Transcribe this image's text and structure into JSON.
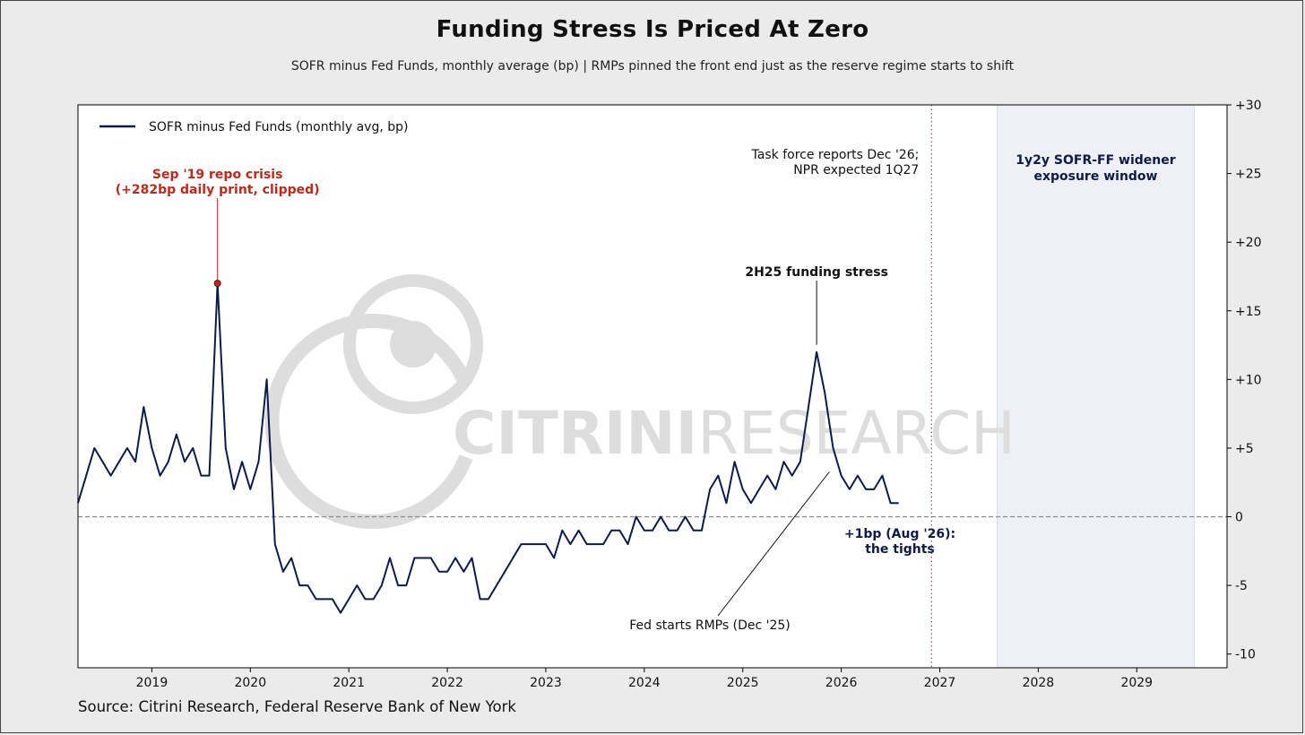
{
  "header": {
    "title": "Funding Stress Is Priced At Zero",
    "subtitle": "SOFR minus Fed Funds, monthly average (bp)  |  RMPs pinned the front end just as the reserve regime starts to shift"
  },
  "footer": {
    "source": "Source: Citrini Research, Federal Reserve Bank of New York"
  },
  "watermark": {
    "text_bold": "CITRINI",
    "text_light": "RESEARCH",
    "icon": "citrini-logo-icon"
  },
  "colors": {
    "series": "#0d1b4b",
    "crisis": "#c0281b",
    "zero_line": "#8a8a8a",
    "shade": "#eef0f5",
    "vline": "#8a5a5a",
    "watermark": "#dddddd"
  },
  "chart_data": {
    "type": "line",
    "title": "Funding Stress Is Priced At Zero",
    "subtitle": "SOFR minus Fed Funds, monthly average (bp)  |  RMPs pinned the front end just as the reserve regime starts to shift",
    "xlim": [
      "2018-04",
      "2029-12"
    ],
    "ylim": [
      -11,
      30
    ],
    "x_ticks": [
      "2019",
      "2020",
      "2021",
      "2022",
      "2023",
      "2024",
      "2025",
      "2026",
      "2027",
      "2028",
      "2029"
    ],
    "y_ticks": [
      {
        "value": 30,
        "label": "+30"
      },
      {
        "value": 25,
        "label": "+25"
      },
      {
        "value": 20,
        "label": "+20"
      },
      {
        "value": 15,
        "label": "+15"
      },
      {
        "value": 10,
        "label": "+10"
      },
      {
        "value": 5,
        "label": "+5"
      },
      {
        "value": 0,
        "label": "0"
      },
      {
        "value": -5,
        "label": "-5"
      },
      {
        "value": -10,
        "label": "-10"
      }
    ],
    "y_axis_side": "right",
    "grid": false,
    "legend": {
      "position": "top-left",
      "entries": [
        "SOFR minus Fed Funds (monthly avg, bp)"
      ]
    },
    "series": [
      {
        "name": "SOFR minus Fed Funds (monthly avg, bp)",
        "x": [
          "2018-04",
          "2018-05",
          "2018-06",
          "2018-07",
          "2018-08",
          "2018-09",
          "2018-10",
          "2018-11",
          "2018-12",
          "2019-01",
          "2019-02",
          "2019-03",
          "2019-04",
          "2019-05",
          "2019-06",
          "2019-07",
          "2019-08",
          "2019-09",
          "2019-10",
          "2019-11",
          "2019-12",
          "2020-01",
          "2020-02",
          "2020-03",
          "2020-04",
          "2020-05",
          "2020-06",
          "2020-07",
          "2020-08",
          "2020-09",
          "2020-10",
          "2020-11",
          "2020-12",
          "2021-01",
          "2021-02",
          "2021-03",
          "2021-04",
          "2021-05",
          "2021-06",
          "2021-07",
          "2021-08",
          "2021-09",
          "2021-10",
          "2021-11",
          "2021-12",
          "2022-01",
          "2022-02",
          "2022-03",
          "2022-04",
          "2022-05",
          "2022-06",
          "2022-07",
          "2022-08",
          "2022-09",
          "2022-10",
          "2022-11",
          "2022-12",
          "2023-01",
          "2023-02",
          "2023-03",
          "2023-04",
          "2023-05",
          "2023-06",
          "2023-07",
          "2023-08",
          "2023-09",
          "2023-10",
          "2023-11",
          "2023-12",
          "2024-01",
          "2024-02",
          "2024-03",
          "2024-04",
          "2024-05",
          "2024-06",
          "2024-07",
          "2024-08",
          "2024-09",
          "2024-10",
          "2024-11",
          "2024-12",
          "2025-01",
          "2025-02",
          "2025-03",
          "2025-04",
          "2025-05",
          "2025-06",
          "2025-07",
          "2025-08",
          "2025-09",
          "2025-10",
          "2025-11",
          "2025-12",
          "2026-01",
          "2026-02",
          "2026-03",
          "2026-04",
          "2026-05",
          "2026-06",
          "2026-07",
          "2026-08"
        ],
        "values": [
          1,
          3,
          5,
          4,
          3,
          4,
          5,
          4,
          8,
          5,
          3,
          4,
          6,
          4,
          5,
          3,
          3,
          17,
          5,
          2,
          4,
          2,
          4,
          10,
          -2,
          -4,
          -3,
          -5,
          -5,
          -6,
          -6,
          -6,
          -7,
          -6,
          -5,
          -6,
          -6,
          -5,
          -3,
          -5,
          -5,
          -3,
          -3,
          -3,
          -4,
          -4,
          -3,
          -4,
          -3,
          -6,
          -6,
          -5,
          -4,
          -3,
          -2,
          -2,
          -2,
          -2,
          -3,
          -1,
          -2,
          -1,
          -2,
          -2,
          -2,
          -1,
          -1,
          -2,
          0,
          -1,
          -1,
          0,
          -1,
          -1,
          0,
          -1,
          -1,
          2,
          3,
          1,
          4,
          2,
          1,
          2,
          3,
          2,
          4,
          3,
          4,
          8,
          12,
          9,
          5,
          3,
          2,
          3,
          2,
          2,
          3,
          1,
          1
        ]
      }
    ],
    "annotations": [
      {
        "text": [
          "Sep '19 repo crisis",
          "(+282bp daily print, clipped)"
        ],
        "x": "2019-09",
        "y": 17,
        "color": "crisis",
        "bold": true
      },
      {
        "text": [
          "2H25 funding stress"
        ],
        "x": "2025-10",
        "y": 12,
        "bold": true
      },
      {
        "text": [
          "Fed starts RMPs (Dec '25)"
        ],
        "x": "2025-12",
        "y": 4
      },
      {
        "text": [
          "+1bp (Aug '26):",
          "the tights"
        ],
        "x": "2026-08",
        "y": 1,
        "color": "series",
        "bold": true
      },
      {
        "text": [
          "Task force reports Dec '26;",
          "NPR expected 1Q27"
        ],
        "x": "2026-12"
      },
      {
        "text": [
          "1y2y SOFR-FF widener",
          "exposure window"
        ],
        "color": "series",
        "bold": true
      }
    ],
    "vertical_line": {
      "x": "2026-12",
      "style": "dotted"
    },
    "shaded_region": {
      "x0": "2027-08",
      "x1": "2029-08"
    },
    "reference_line": {
      "y": 0,
      "style": "dashed"
    }
  }
}
